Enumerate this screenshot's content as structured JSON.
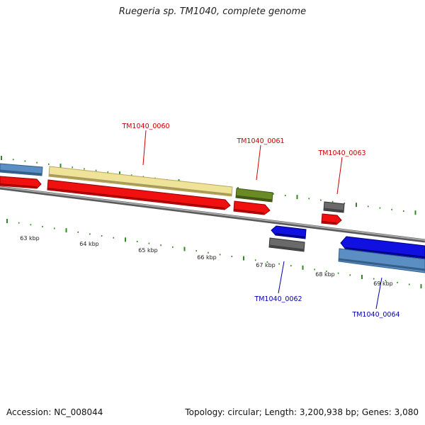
{
  "title": "Ruegeria sp. TM1040, complete genome",
  "footer": {
    "accession": "Accession: NC_008044",
    "topology": "Topology: circular; Length: 3,200,938 bp; Genes: 3,080"
  },
  "colors": {
    "backbone": "#7a7a7a",
    "tick": "#2e8b1e",
    "red": "#f01010",
    "blue_dark": "#1010e0",
    "blue_light": "#5b8fc4",
    "cream": "#efe39a",
    "olive": "#6a8a24",
    "gray": "#6a6a6a",
    "label_red": "#cc0000",
    "label_blue": "#0000aa"
  },
  "scale_labels": [
    "63 kbp",
    "64 kbp",
    "65 kbp",
    "66 kbp",
    "67 kbp",
    "68 kbp",
    "69 kbp"
  ],
  "gene_labels": [
    {
      "text": "TM1040_0060",
      "color": "label_red"
    },
    {
      "text": "TM1040_0061",
      "color": "label_red"
    },
    {
      "text": "TM1040_0063",
      "color": "label_red"
    },
    {
      "text": "TM1040_0062",
      "color": "label_blue"
    },
    {
      "text": "TM1040_0064",
      "color": "label_blue"
    }
  ]
}
